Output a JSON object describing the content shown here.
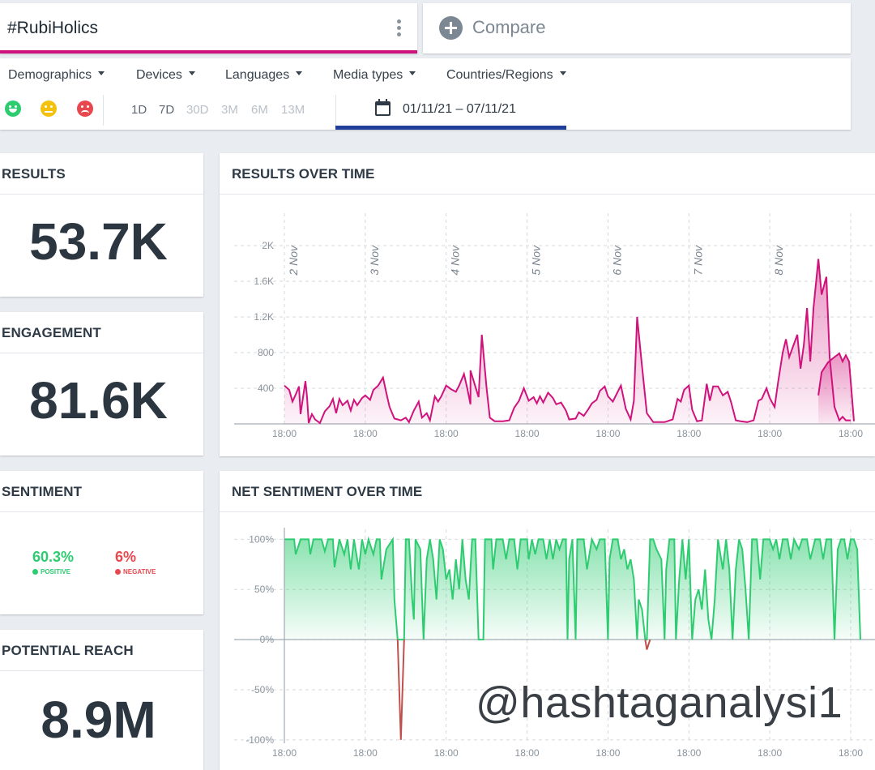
{
  "search": {
    "query": "#RubiHolics"
  },
  "compare": {
    "label": "Compare"
  },
  "filters": {
    "dropdowns": [
      "Demographics",
      "Devices",
      "Languages",
      "Media types",
      "Countries/Regions"
    ],
    "ranges": [
      "1D",
      "7D",
      "30D",
      "3M",
      "6M",
      "13M"
    ],
    "date_range": "01/11/21 – 07/11/21"
  },
  "stats": {
    "results": {
      "title": "RESULTS",
      "value": "53.7K"
    },
    "engagement": {
      "title": "ENGAGEMENT",
      "value": "81.6K"
    },
    "sentiment": {
      "title": "SENTIMENT",
      "positive_value": "60.3%",
      "positive_label": "POSITIVE",
      "negative_value": "6%",
      "negative_label": "NEGATIVE"
    },
    "reach": {
      "title": "POTENTIAL REACH",
      "value": "8.9M"
    }
  },
  "colors": {
    "accent": "#d0137c",
    "positive": "#2ecc71",
    "negative": "#e8474d",
    "date_underline": "#1f3f9a"
  },
  "watermark": "@hashtaganalysi1",
  "chart_data": [
    {
      "type": "area",
      "title": "RESULTS OVER TIME",
      "x_tick_labels": [
        "18:00",
        "18:00",
        "18:00",
        "18:00",
        "18:00",
        "18:00",
        "18:00",
        "18:00"
      ],
      "day_labels": [
        "2 Nov",
        "3 Nov",
        "4 Nov",
        "5 Nov",
        "6 Nov",
        "7 Nov",
        "8 Nov"
      ],
      "y_ticks": [
        400,
        800,
        1200,
        1600,
        2000
      ],
      "y_tick_labels": [
        "400",
        "800",
        "1.2K",
        "1.6K",
        "2K"
      ],
      "ylim": [
        0,
        2000
      ],
      "xlim": [
        0,
        7
      ],
      "grid": true,
      "color": "#d0137c",
      "points": [
        [
          0,
          430
        ],
        [
          0.06,
          380
        ],
        [
          0.1,
          250
        ],
        [
          0.14,
          330
        ],
        [
          0.18,
          420
        ],
        [
          0.2,
          110
        ],
        [
          0.24,
          360
        ],
        [
          0.26,
          480
        ],
        [
          0.28,
          300
        ],
        [
          0.3,
          10
        ],
        [
          0.34,
          110
        ],
        [
          0.38,
          50
        ],
        [
          0.44,
          10
        ],
        [
          0.5,
          140
        ],
        [
          0.56,
          200
        ],
        [
          0.6,
          280
        ],
        [
          0.64,
          120
        ],
        [
          0.68,
          280
        ],
        [
          0.72,
          210
        ],
        [
          0.78,
          260
        ],
        [
          0.82,
          150
        ],
        [
          0.86,
          270
        ],
        [
          0.9,
          210
        ],
        [
          0.96,
          290
        ],
        [
          1.0,
          320
        ],
        [
          1.06,
          270
        ],
        [
          1.1,
          380
        ],
        [
          1.16,
          430
        ],
        [
          1.22,
          520
        ],
        [
          1.26,
          350
        ],
        [
          1.3,
          190
        ],
        [
          1.36,
          60
        ],
        [
          1.44,
          40
        ],
        [
          1.5,
          70
        ],
        [
          1.54,
          20
        ],
        [
          1.6,
          150
        ],
        [
          1.66,
          250
        ],
        [
          1.7,
          70
        ],
        [
          1.76,
          120
        ],
        [
          1.8,
          40
        ],
        [
          1.86,
          310
        ],
        [
          1.9,
          250
        ],
        [
          1.94,
          310
        ],
        [
          2.0,
          430
        ],
        [
          2.06,
          390
        ],
        [
          2.12,
          360
        ],
        [
          2.16,
          430
        ],
        [
          2.22,
          560
        ],
        [
          2.26,
          400
        ],
        [
          2.3,
          220
        ],
        [
          2.3,
          600
        ],
        [
          2.36,
          420
        ],
        [
          2.4,
          300
        ],
        [
          2.44,
          1000
        ],
        [
          2.5,
          400
        ],
        [
          2.54,
          70
        ],
        [
          2.6,
          30
        ],
        [
          2.7,
          30
        ],
        [
          2.78,
          40
        ],
        [
          2.84,
          180
        ],
        [
          2.9,
          260
        ],
        [
          2.96,
          400
        ],
        [
          3.02,
          260
        ],
        [
          3.08,
          300
        ],
        [
          3.12,
          230
        ],
        [
          3.16,
          310
        ],
        [
          3.2,
          240
        ],
        [
          3.26,
          350
        ],
        [
          3.32,
          290
        ],
        [
          3.36,
          220
        ],
        [
          3.42,
          240
        ],
        [
          3.48,
          150
        ],
        [
          3.52,
          50
        ],
        [
          3.6,
          60
        ],
        [
          3.64,
          130
        ],
        [
          3.7,
          90
        ],
        [
          3.76,
          170
        ],
        [
          3.8,
          230
        ],
        [
          3.86,
          270
        ],
        [
          3.9,
          370
        ],
        [
          3.96,
          420
        ],
        [
          4.0,
          310
        ],
        [
          4.06,
          250
        ],
        [
          4.12,
          360
        ],
        [
          4.16,
          430
        ],
        [
          4.22,
          170
        ],
        [
          4.28,
          50
        ],
        [
          4.32,
          260
        ],
        [
          4.36,
          1200
        ],
        [
          4.42,
          650
        ],
        [
          4.48,
          120
        ],
        [
          4.56,
          20
        ],
        [
          4.7,
          20
        ],
        [
          4.8,
          50
        ],
        [
          4.86,
          280
        ],
        [
          4.9,
          250
        ],
        [
          4.94,
          380
        ],
        [
          5.0,
          430
        ],
        [
          5.04,
          160
        ],
        [
          5.1,
          30
        ],
        [
          5.16,
          40
        ],
        [
          5.22,
          450
        ],
        [
          5.26,
          260
        ],
        [
          5.3,
          420
        ],
        [
          5.36,
          420
        ],
        [
          5.42,
          320
        ],
        [
          5.48,
          360
        ],
        [
          5.52,
          250
        ],
        [
          5.58,
          40
        ],
        [
          5.64,
          30
        ],
        [
          5.72,
          20
        ],
        [
          5.8,
          40
        ],
        [
          5.86,
          260
        ],
        [
          5.9,
          280
        ],
        [
          5.96,
          400
        ],
        [
          6.0,
          290
        ],
        [
          6.06,
          190
        ],
        [
          6.1,
          450
        ],
        [
          6.16,
          800
        ],
        [
          6.2,
          950
        ],
        [
          6.24,
          750
        ],
        [
          6.3,
          900
        ],
        [
          6.34,
          1000
        ],
        [
          6.38,
          620
        ],
        [
          6.42,
          880
        ],
        [
          6.46,
          1300
        ],
        [
          6.5,
          700
        ],
        [
          6.54,
          1300
        ],
        [
          6.6,
          1850
        ],
        [
          6.64,
          1450
        ],
        [
          6.7,
          1650
        ],
        [
          6.74,
          750
        ],
        [
          6.8,
          190
        ],
        [
          6.86,
          40
        ],
        [
          6.9,
          80
        ],
        [
          6.94,
          40
        ],
        [
          7.0,
          40
        ]
      ],
      "points_tail": [
        [
          6.6,
          320
        ],
        [
          6.64,
          580
        ],
        [
          6.72,
          690
        ],
        [
          6.8,
          750
        ],
        [
          6.86,
          790
        ],
        [
          6.9,
          700
        ],
        [
          6.94,
          770
        ],
        [
          6.98,
          700
        ],
        [
          7.0,
          480
        ],
        [
          7.04,
          30
        ]
      ]
    },
    {
      "type": "area",
      "title": "NET SENTIMENT OVER TIME",
      "x_tick_labels": [
        "18:00",
        "18:00",
        "18:00",
        "18:00",
        "18:00",
        "18:00",
        "18:00",
        "18:00"
      ],
      "y_ticks": [
        -100,
        -50,
        0,
        50,
        100
      ],
      "y_tick_labels": [
        "-100%",
        "-50%",
        "0%",
        "50%",
        "100%"
      ],
      "ylim": [
        -105,
        110
      ],
      "xlim": [
        0,
        7
      ],
      "grid": true,
      "positive_color": "#2ecc71",
      "negative_color": "#c0504d",
      "points": [
        [
          0,
          100
        ],
        [
          0.04,
          100
        ],
        [
          0.12,
          100
        ],
        [
          0.14,
          85
        ],
        [
          0.2,
          100
        ],
        [
          0.3,
          100
        ],
        [
          0.32,
          85
        ],
        [
          0.36,
          100
        ],
        [
          0.46,
          100
        ],
        [
          0.5,
          88
        ],
        [
          0.54,
          100
        ],
        [
          0.6,
          100
        ],
        [
          0.62,
          72
        ],
        [
          0.68,
          100
        ],
        [
          0.74,
          85
        ],
        [
          0.78,
          100
        ],
        [
          0.82,
          70
        ],
        [
          0.86,
          100
        ],
        [
          0.92,
          70
        ],
        [
          0.96,
          100
        ],
        [
          1.0,
          85
        ],
        [
          1.04,
          100
        ],
        [
          1.1,
          85
        ],
        [
          1.14,
          100
        ],
        [
          1.18,
          100
        ],
        [
          1.2,
          60
        ],
        [
          1.26,
          90
        ],
        [
          1.34,
          100
        ],
        [
          1.36,
          40
        ],
        [
          1.4,
          0
        ],
        [
          1.44,
          -100
        ],
        [
          1.48,
          0
        ],
        [
          1.5,
          100
        ],
        [
          1.54,
          100
        ],
        [
          1.58,
          40
        ],
        [
          1.6,
          20
        ],
        [
          1.62,
          100
        ],
        [
          1.68,
          90
        ],
        [
          1.72,
          0
        ],
        [
          1.76,
          80
        ],
        [
          1.8,
          100
        ],
        [
          1.84,
          80
        ],
        [
          1.88,
          40
        ],
        [
          1.92,
          100
        ],
        [
          1.96,
          90
        ],
        [
          2.0,
          60
        ],
        [
          2.04,
          70
        ],
        [
          2.08,
          40
        ],
        [
          2.12,
          80
        ],
        [
          2.16,
          50
        ],
        [
          2.2,
          100
        ],
        [
          2.24,
          60
        ],
        [
          2.28,
          40
        ],
        [
          2.32,
          100
        ],
        [
          2.36,
          100
        ],
        [
          2.4,
          0
        ],
        [
          2.46,
          0
        ],
        [
          2.48,
          100
        ],
        [
          2.56,
          100
        ],
        [
          2.58,
          70
        ],
        [
          2.62,
          100
        ],
        [
          2.7,
          100
        ],
        [
          2.74,
          80
        ],
        [
          2.78,
          100
        ],
        [
          2.84,
          100
        ],
        [
          2.88,
          70
        ],
        [
          2.92,
          100
        ],
        [
          3.0,
          100
        ],
        [
          3.02,
          80
        ],
        [
          3.06,
          100
        ],
        [
          3.1,
          85
        ],
        [
          3.14,
          100
        ],
        [
          3.2,
          100
        ],
        [
          3.24,
          80
        ],
        [
          3.28,
          100
        ],
        [
          3.32,
          80
        ],
        [
          3.36,
          100
        ],
        [
          3.4,
          90
        ],
        [
          3.44,
          100
        ],
        [
          3.48,
          100
        ],
        [
          3.5,
          0
        ],
        [
          3.52,
          80
        ],
        [
          3.56,
          100
        ],
        [
          3.6,
          0
        ],
        [
          3.62,
          100
        ],
        [
          3.7,
          100
        ],
        [
          3.74,
          70
        ],
        [
          3.8,
          100
        ],
        [
          3.86,
          90
        ],
        [
          3.9,
          100
        ],
        [
          3.96,
          100
        ],
        [
          4.0,
          0
        ],
        [
          4.02,
          80
        ],
        [
          4.06,
          100
        ],
        [
          4.12,
          100
        ],
        [
          4.16,
          80
        ],
        [
          4.2,
          90
        ],
        [
          4.24,
          70
        ],
        [
          4.28,
          80
        ],
        [
          4.32,
          60
        ],
        [
          4.36,
          0
        ],
        [
          4.38,
          40
        ],
        [
          4.42,
          30
        ],
        [
          4.46,
          0
        ],
        [
          4.48,
          -10
        ],
        [
          4.52,
          100
        ],
        [
          4.56,
          100
        ],
        [
          4.6,
          90
        ],
        [
          4.66,
          80
        ],
        [
          4.7,
          0
        ],
        [
          4.72,
          70
        ],
        [
          4.76,
          100
        ],
        [
          4.82,
          100
        ],
        [
          4.84,
          0
        ],
        [
          4.88,
          60
        ],
        [
          4.92,
          100
        ],
        [
          4.96,
          60
        ],
        [
          5.0,
          100
        ],
        [
          5.04,
          0
        ],
        [
          5.08,
          40
        ],
        [
          5.12,
          50
        ],
        [
          5.16,
          30
        ],
        [
          5.2,
          70
        ],
        [
          5.24,
          20
        ],
        [
          5.28,
          0
        ],
        [
          5.32,
          40
        ],
        [
          5.36,
          100
        ],
        [
          5.42,
          70
        ],
        [
          5.46,
          100
        ],
        [
          5.5,
          70
        ],
        [
          5.54,
          0
        ],
        [
          5.58,
          70
        ],
        [
          5.62,
          100
        ],
        [
          5.66,
          90
        ],
        [
          5.7,
          50
        ],
        [
          5.74,
          0
        ],
        [
          5.78,
          100
        ],
        [
          5.84,
          100
        ],
        [
          5.88,
          60
        ],
        [
          5.92,
          100
        ],
        [
          6.0,
          100
        ],
        [
          6.04,
          90
        ],
        [
          6.08,
          100
        ],
        [
          6.12,
          80
        ],
        [
          6.16,
          100
        ],
        [
          6.22,
          100
        ],
        [
          6.26,
          80
        ],
        [
          6.3,
          100
        ],
        [
          6.36,
          90
        ],
        [
          6.4,
          100
        ],
        [
          6.46,
          100
        ],
        [
          6.5,
          80
        ],
        [
          6.56,
          100
        ],
        [
          6.62,
          100
        ],
        [
          6.66,
          80
        ],
        [
          6.7,
          100
        ],
        [
          6.76,
          100
        ],
        [
          6.8,
          0
        ],
        [
          6.84,
          90
        ],
        [
          6.88,
          100
        ],
        [
          6.92,
          100
        ],
        [
          6.96,
          80
        ],
        [
          7.0,
          100
        ],
        [
          7.04,
          100
        ],
        [
          7.08,
          90
        ],
        [
          7.12,
          0
        ]
      ]
    }
  ]
}
